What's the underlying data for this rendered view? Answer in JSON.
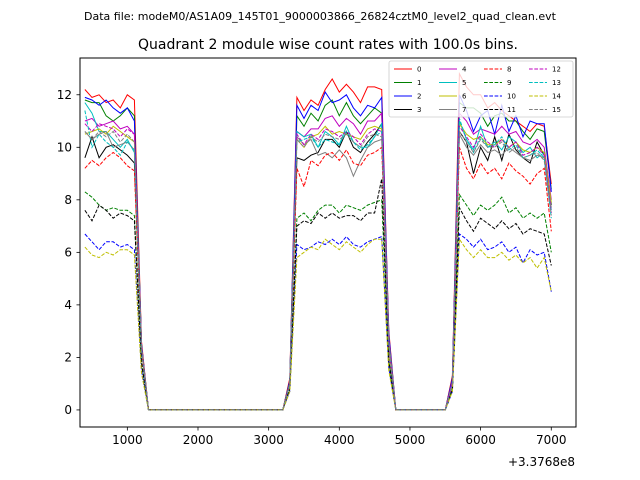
{
  "chart_data": {
    "type": "line",
    "suptitle": "Data file: modeM0/AS1A09_145T01_9000003866_26824cztM0_level2_quad_clean.evt",
    "title": "Quadrant 2 module wise count rates with 100.0s bins.",
    "xlabel": "",
    "ylabel": "",
    "x_offset_label": "+3.3768e8",
    "xlim": [
      330,
      7350
    ],
    "ylim": [
      -0.65,
      13.4
    ],
    "xticks": [
      1000,
      2000,
      3000,
      4000,
      5000,
      6000,
      7000
    ],
    "yticks": [
      0,
      2,
      4,
      6,
      8,
      10,
      12
    ],
    "legend_position": "top-right",
    "x": [
      400,
      500,
      600,
      700,
      800,
      900,
      1000,
      1100,
      1200,
      1300,
      1400,
      1500,
      1600,
      1700,
      1800,
      1900,
      2000,
      2100,
      2200,
      2300,
      2400,
      2500,
      2600,
      2700,
      2800,
      2900,
      3000,
      3100,
      3200,
      3300,
      3400,
      3500,
      3600,
      3700,
      3800,
      3900,
      4000,
      4100,
      4200,
      4300,
      4400,
      4500,
      4600,
      4700,
      4800,
      4900,
      5000,
      5100,
      5200,
      5300,
      5400,
      5500,
      5600,
      5700,
      5800,
      5900,
      6000,
      6100,
      6200,
      6300,
      6400,
      6500,
      6600,
      6700,
      6800,
      6900,
      7000
    ],
    "series": [
      {
        "name": "0",
        "color": "#ff0000",
        "dash": "solid",
        "values": [
          12.2,
          11.9,
          12.0,
          11.7,
          11.8,
          11.5,
          12.0,
          11.8,
          2.6,
          0,
          0,
          0,
          0,
          0,
          0,
          0,
          0,
          0,
          0,
          0,
          0,
          0,
          0,
          0,
          0,
          0,
          0,
          0,
          0,
          1.2,
          11.9,
          11.4,
          11.8,
          11.6,
          12.2,
          12.6,
          12.1,
          12.4,
          12.1,
          11.7,
          12.3,
          12.3,
          12.2,
          3.0,
          0,
          0,
          0,
          0,
          0,
          0,
          0,
          0,
          1.3,
          12.8,
          12.3,
          12.0,
          12.0,
          11.5,
          11.7,
          11.4,
          11.2,
          11.0,
          10.8,
          10.6,
          10.9,
          10.8,
          8.6
        ]
      },
      {
        "name": "1",
        "color": "#008000",
        "dash": "solid",
        "values": [
          11.8,
          11.7,
          11.7,
          11.2,
          11.0,
          11.2,
          11.5,
          11.2,
          2.5,
          0,
          0,
          0,
          0,
          0,
          0,
          0,
          0,
          0,
          0,
          0,
          0,
          0,
          0,
          0,
          0,
          0,
          0,
          0,
          0,
          1.1,
          11.2,
          10.8,
          11.3,
          11.0,
          11.6,
          11.8,
          11.2,
          11.7,
          11.2,
          10.9,
          11.2,
          11.5,
          11.3,
          2.8,
          0,
          0,
          0,
          0,
          0,
          0,
          0,
          0,
          1.2,
          11.7,
          11.5,
          11.5,
          11.3,
          10.8,
          11.2,
          11.3,
          11.0,
          11.0,
          10.6,
          10.3,
          10.7,
          10.6,
          8.4
        ]
      },
      {
        "name": "2",
        "color": "#0000ff",
        "dash": "solid",
        "values": [
          11.9,
          11.8,
          11.6,
          11.8,
          11.5,
          11.3,
          11.5,
          11.0,
          2.5,
          0,
          0,
          0,
          0,
          0,
          0,
          0,
          0,
          0,
          0,
          0,
          0,
          0,
          0,
          0,
          0,
          0,
          0,
          0,
          0,
          1.1,
          11.6,
          11.1,
          11.6,
          11.4,
          12.1,
          11.7,
          11.8,
          12.0,
          11.5,
          11.2,
          11.6,
          11.5,
          11.9,
          2.9,
          0,
          0,
          0,
          0,
          0,
          0,
          0,
          0,
          1.2,
          12.0,
          11.4,
          10.6,
          11.2,
          11.4,
          10.5,
          11.6,
          10.6,
          11.2,
          10.4,
          11.0,
          10.9,
          10.9,
          8.3
        ]
      },
      {
        "name": "3",
        "color": "#000000",
        "dash": "solid",
        "values": [
          9.6,
          10.4,
          9.6,
          10.0,
          10.1,
          9.9,
          9.7,
          9.4,
          2.3,
          0,
          0,
          0,
          0,
          0,
          0,
          0,
          0,
          0,
          0,
          0,
          0,
          0,
          0,
          0,
          0,
          0,
          0,
          0,
          0,
          1.0,
          9.6,
          9.5,
          9.7,
          9.8,
          10.3,
          10.3,
          10.0,
          10.6,
          10.0,
          9.8,
          10.2,
          10.5,
          10.9,
          2.6,
          0,
          0,
          0,
          0,
          0,
          0,
          0,
          0,
          1.0,
          10.6,
          10.2,
          9.0,
          10.0,
          9.5,
          10.4,
          9.5,
          10.5,
          9.9,
          9.6,
          9.4,
          10.2,
          9.7,
          7.8
        ]
      },
      {
        "name": "4",
        "color": "#bf00bf",
        "dash": "solid",
        "values": [
          11.0,
          11.1,
          10.8,
          10.9,
          11.0,
          10.7,
          10.8,
          10.5,
          2.4,
          0,
          0,
          0,
          0,
          0,
          0,
          0,
          0,
          0,
          0,
          0,
          0,
          0,
          0,
          0,
          0,
          0,
          0,
          0,
          0,
          1.0,
          10.6,
          10.4,
          10.7,
          10.7,
          11.1,
          11.2,
          10.8,
          11.1,
          10.9,
          10.5,
          11.0,
          11.0,
          11.3,
          2.7,
          0,
          0,
          0,
          0,
          0,
          0,
          0,
          0,
          1.1,
          11.3,
          11.0,
          10.5,
          10.7,
          10.6,
          10.5,
          10.8,
          10.5,
          10.6,
          10.2,
          10.1,
          10.3,
          10.0,
          8.0
        ]
      },
      {
        "name": "5",
        "color": "#00bfbf",
        "dash": "solid",
        "values": [
          11.7,
          11.3,
          10.6,
          10.6,
          10.3,
          10.0,
          10.3,
          9.8,
          2.3,
          0,
          0,
          0,
          0,
          0,
          0,
          0,
          0,
          0,
          0,
          0,
          0,
          0,
          0,
          0,
          0,
          0,
          0,
          0,
          0,
          1.0,
          10.6,
          10.4,
          10.5,
          10.0,
          10.6,
          10.4,
          10.1,
          10.8,
          10.2,
          10.0,
          10.0,
          10.4,
          10.9,
          2.6,
          0,
          0,
          0,
          0,
          0,
          0,
          0,
          0,
          1.0,
          11.0,
          10.3,
          9.9,
          10.8,
          10.0,
          10.2,
          9.9,
          10.4,
          10.2,
          9.8,
          10.0,
          9.6,
          9.8,
          7.6
        ]
      },
      {
        "name": "6",
        "color": "#bfbf00",
        "dash": "solid",
        "values": [
          10.5,
          10.6,
          10.7,
          10.5,
          10.8,
          10.6,
          10.4,
          10.2,
          2.4,
          0,
          0,
          0,
          0,
          0,
          0,
          0,
          0,
          0,
          0,
          0,
          0,
          0,
          0,
          0,
          0,
          0,
          0,
          0,
          0,
          1.0,
          10.3,
          10.0,
          10.4,
          10.5,
          10.8,
          10.5,
          10.6,
          10.5,
          10.4,
          10.3,
          10.7,
          10.8,
          10.7,
          2.6,
          0,
          0,
          0,
          0,
          0,
          0,
          0,
          0,
          1.0,
          10.9,
          10.5,
          10.3,
          10.4,
          10.1,
          10.1,
          10.3,
          10.0,
          10.2,
          9.9,
          9.8,
          10.0,
          9.8,
          7.9
        ]
      },
      {
        "name": "7",
        "color": "#808080",
        "dash": "solid",
        "values": [
          10.6,
          10.3,
          10.5,
          10.6,
          10.0,
          10.1,
          10.2,
          9.9,
          2.3,
          0,
          0,
          0,
          0,
          0,
          0,
          0,
          0,
          0,
          0,
          0,
          0,
          0,
          0,
          0,
          0,
          0,
          0,
          0,
          0,
          1.0,
          10.4,
          10.1,
          10.3,
          9.7,
          9.8,
          9.6,
          9.9,
          9.6,
          8.9,
          9.5,
          10.0,
          10.2,
          10.3,
          2.5,
          0,
          0,
          0,
          0,
          0,
          0,
          0,
          0,
          1.0,
          10.5,
          10.0,
          9.7,
          10.1,
          9.8,
          9.9,
          9.7,
          10.0,
          9.8,
          9.6,
          9.5,
          9.7,
          9.6,
          7.7
        ]
      },
      {
        "name": "8",
        "color": "#ff0000",
        "dash": "dash",
        "values": [
          9.2,
          9.5,
          9.3,
          9.6,
          9.8,
          9.6,
          9.3,
          9.1,
          2.2,
          0,
          0,
          0,
          0,
          0,
          0,
          0,
          0,
          0,
          0,
          0,
          0,
          0,
          0,
          0,
          0,
          0,
          0,
          0,
          0,
          1.0,
          9.2,
          8.5,
          9.5,
          9.3,
          9.7,
          9.8,
          9.5,
          9.9,
          9.4,
          9.3,
          9.7,
          9.8,
          10.0,
          2.4,
          0,
          0,
          0,
          0,
          0,
          0,
          0,
          0,
          1.0,
          10.0,
          9.2,
          8.8,
          9.4,
          9.0,
          9.2,
          8.8,
          9.4,
          9.1,
          8.9,
          8.6,
          9.0,
          9.2,
          6.8
        ]
      },
      {
        "name": "9",
        "color": "#008000",
        "dash": "dash",
        "values": [
          8.3,
          8.1,
          7.8,
          7.6,
          7.7,
          7.6,
          7.6,
          7.4,
          1.8,
          0,
          0,
          0,
          0,
          0,
          0,
          0,
          0,
          0,
          0,
          0,
          0,
          0,
          0,
          0,
          0,
          0,
          0,
          0,
          0,
          0.8,
          7.3,
          7.5,
          7.2,
          7.6,
          7.8,
          7.8,
          7.5,
          7.8,
          7.7,
          7.6,
          7.8,
          7.9,
          8.0,
          1.9,
          0,
          0,
          0,
          0,
          0,
          0,
          0,
          0,
          0.8,
          8.2,
          7.8,
          7.4,
          7.8,
          7.6,
          7.8,
          8.1,
          7.5,
          7.7,
          7.3,
          7.5,
          7.3,
          7.5,
          6.0
        ]
      },
      {
        "name": "10",
        "color": "#0000ff",
        "dash": "dash",
        "values": [
          6.7,
          6.4,
          6.1,
          6.4,
          6.4,
          6.2,
          6.3,
          6.1,
          1.5,
          0,
          0,
          0,
          0,
          0,
          0,
          0,
          0,
          0,
          0,
          0,
          0,
          0,
          0,
          0,
          0,
          0,
          0,
          0,
          0,
          0.7,
          6.3,
          6.1,
          6.2,
          6.4,
          6.3,
          6.5,
          6.3,
          6.6,
          6.3,
          6.2,
          6.4,
          6.5,
          6.6,
          1.6,
          0,
          0,
          0,
          0,
          0,
          0,
          0,
          0,
          0.7,
          6.7,
          6.5,
          6.2,
          6.5,
          6.1,
          6.2,
          6.4,
          6.0,
          6.2,
          5.6,
          6.1,
          5.9,
          6.0,
          4.5
        ]
      },
      {
        "name": "11",
        "color": "#000000",
        "dash": "dash",
        "values": [
          7.6,
          7.2,
          7.8,
          7.6,
          7.3,
          7.5,
          7.4,
          7.2,
          1.8,
          0,
          0,
          0,
          0,
          0,
          0,
          0,
          0,
          0,
          0,
          0,
          0,
          0,
          0,
          0,
          0,
          0,
          0,
          0,
          0,
          0.8,
          7.0,
          7.2,
          7.1,
          7.5,
          7.3,
          7.5,
          7.3,
          7.4,
          7.4,
          7.2,
          7.5,
          7.5,
          8.8,
          1.9,
          0,
          0,
          0,
          0,
          0,
          0,
          0,
          0,
          0.8,
          7.7,
          7.2,
          6.8,
          7.3,
          7.1,
          6.9,
          7.2,
          6.9,
          7.1,
          6.7,
          6.9,
          6.8,
          6.7,
          5.5
        ]
      },
      {
        "name": "12",
        "color": "#bf00bf",
        "dash": "dash",
        "values": [
          10.9,
          10.6,
          10.9,
          10.8,
          10.7,
          10.4,
          10.7,
          10.5,
          2.4,
          0,
          0,
          0,
          0,
          0,
          0,
          0,
          0,
          0,
          0,
          0,
          0,
          0,
          0,
          0,
          0,
          0,
          0,
          0,
          0,
          1.0,
          10.5,
          10.1,
          10.5,
          10.3,
          10.7,
          10.6,
          10.4,
          10.6,
          10.4,
          10.1,
          10.5,
          10.7,
          10.6,
          2.5,
          0,
          0,
          0,
          0,
          0,
          0,
          0,
          0,
          1.0,
          10.8,
          10.4,
          10.0,
          10.5,
          10.2,
          10.0,
          10.3,
          10.0,
          10.2,
          9.7,
          9.8,
          10.0,
          9.7,
          7.5
        ]
      },
      {
        "name": "13",
        "color": "#00bfbf",
        "dash": "dash",
        "values": [
          11.4,
          10.0,
          10.5,
          10.2,
          10.0,
          9.7,
          10.2,
          9.9,
          2.3,
          0,
          0,
          0,
          0,
          0,
          0,
          0,
          0,
          0,
          0,
          0,
          0,
          0,
          0,
          0,
          0,
          0,
          0,
          0,
          0,
          1.0,
          10.2,
          10.3,
          10.4,
          10.0,
          10.3,
          10.2,
          10.1,
          10.6,
          10.2,
          9.9,
          10.1,
          10.4,
          10.6,
          2.5,
          0,
          0,
          0,
          0,
          0,
          0,
          0,
          0,
          1.0,
          11.1,
          10.3,
          9.8,
          10.4,
          10.0,
          10.1,
          10.4,
          9.9,
          10.1,
          9.6,
          9.7,
          9.9,
          9.6,
          7.3
        ]
      },
      {
        "name": "14",
        "color": "#bfbf00",
        "dash": "dash",
        "values": [
          6.2,
          5.9,
          5.8,
          6.0,
          5.9,
          6.1,
          6.1,
          5.9,
          1.4,
          0,
          0,
          0,
          0,
          0,
          0,
          0,
          0,
          0,
          0,
          0,
          0,
          0,
          0,
          0,
          0,
          0,
          0,
          0,
          0,
          0.7,
          5.8,
          6.0,
          6.2,
          6.1,
          6.5,
          6.3,
          6.1,
          6.4,
          6.2,
          6.0,
          6.3,
          6.5,
          6.5,
          1.5,
          0,
          0,
          0,
          0,
          0,
          0,
          0,
          0,
          0.7,
          6.5,
          6.1,
          5.8,
          6.1,
          5.8,
          5.8,
          6.0,
          5.7,
          5.9,
          5.6,
          5.8,
          5.4,
          5.8,
          4.5
        ]
      },
      {
        "name": "15",
        "color": "#808080",
        "dash": "dash",
        "values": [
          10.6,
          10.3,
          10.6,
          10.4,
          10.6,
          10.2,
          10.5,
          10.2,
          2.3,
          0,
          0,
          0,
          0,
          0,
          0,
          0,
          0,
          0,
          0,
          0,
          0,
          0,
          0,
          0,
          0,
          0,
          0,
          0,
          0,
          1.0,
          10.3,
          10.0,
          10.4,
          10.2,
          10.5,
          10.4,
          10.3,
          10.5,
          10.2,
          10.0,
          10.4,
          10.5,
          10.4,
          2.5,
          0,
          0,
          0,
          0,
          0,
          0,
          0,
          0,
          1.0,
          10.6,
          10.2,
          9.8,
          10.3,
          10.0,
          10.0,
          10.2,
          9.8,
          10.0,
          9.6,
          9.7,
          9.8,
          9.5,
          7.4
        ]
      }
    ]
  }
}
